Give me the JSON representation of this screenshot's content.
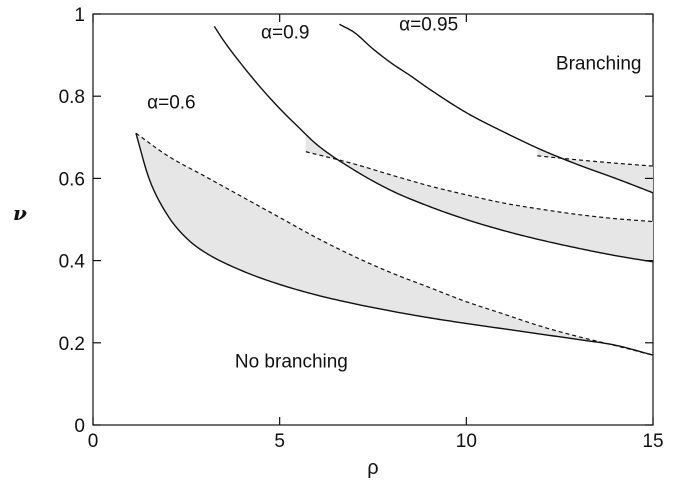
{
  "chart_data": {
    "type": "line",
    "title": "",
    "xlabel": "ρ",
    "ylabel": "ν",
    "xlim": [
      0,
      15
    ],
    "ylim": [
      0,
      1
    ],
    "xticks": [
      0,
      5,
      10,
      15
    ],
    "xtick_labels": [
      "0",
      "5",
      "10",
      "15"
    ],
    "yticks": [
      0,
      0.2,
      0.4,
      0.6,
      0.8,
      1
    ],
    "ytick_labels": [
      "0",
      "0.2",
      "0.4",
      "0.6",
      "0.8",
      "1"
    ],
    "grid": false,
    "legend": "none",
    "annotations": [
      {
        "text": "α=0.6",
        "x": 1.45,
        "y": 0.77
      },
      {
        "text": "α=0.9",
        "x": 4.5,
        "y": 0.94
      },
      {
        "text": "α=0.95",
        "x": 8.2,
        "y": 0.96
      },
      {
        "text": "Branching",
        "x": 12.4,
        "y": 0.865
      },
      {
        "text": "No branching",
        "x": 3.8,
        "y": 0.14
      }
    ],
    "series": [
      {
        "alpha": "0.6",
        "solid": [
          [
            1.15,
            0.71
          ],
          [
            1.5,
            0.6
          ],
          [
            2,
            0.51
          ],
          [
            2.5,
            0.455
          ],
          [
            3,
            0.42
          ],
          [
            4,
            0.375
          ],
          [
            5,
            0.342
          ],
          [
            6,
            0.316
          ],
          [
            7,
            0.295
          ],
          [
            8,
            0.277
          ],
          [
            9,
            0.261
          ],
          [
            10,
            0.247
          ],
          [
            11,
            0.234
          ],
          [
            12,
            0.221
          ],
          [
            13,
            0.208
          ],
          [
            14,
            0.194
          ],
          [
            15,
            0.17
          ]
        ],
        "dashed": [
          [
            1.15,
            0.71
          ],
          [
            2,
            0.655
          ],
          [
            3,
            0.605
          ],
          [
            4,
            0.555
          ],
          [
            5,
            0.505
          ],
          [
            6,
            0.455
          ],
          [
            7,
            0.41
          ],
          [
            8,
            0.37
          ],
          [
            9,
            0.335
          ],
          [
            10,
            0.3
          ],
          [
            11,
            0.27
          ],
          [
            12,
            0.24
          ],
          [
            13,
            0.215
          ],
          [
            14,
            0.193
          ],
          [
            15,
            0.17
          ]
        ]
      },
      {
        "alpha": "0.9",
        "solid": [
          [
            3.25,
            0.97
          ],
          [
            3.5,
            0.935
          ],
          [
            4,
            0.875
          ],
          [
            4.5,
            0.82
          ],
          [
            5,
            0.77
          ],
          [
            5.5,
            0.725
          ],
          [
            6,
            0.682
          ],
          [
            7,
            0.62
          ],
          [
            8,
            0.57
          ],
          [
            9,
            0.532
          ],
          [
            10,
            0.5
          ],
          [
            11,
            0.473
          ],
          [
            12,
            0.45
          ],
          [
            13,
            0.43
          ],
          [
            14,
            0.412
          ],
          [
            15,
            0.397
          ]
        ],
        "dashed": [
          [
            5.7,
            0.665
          ],
          [
            7,
            0.635
          ],
          [
            8,
            0.608
          ],
          [
            9,
            0.582
          ],
          [
            10,
            0.56
          ],
          [
            11,
            0.54
          ],
          [
            12,
            0.525
          ],
          [
            13,
            0.512
          ],
          [
            14,
            0.502
          ],
          [
            15,
            0.495
          ]
        ]
      },
      {
        "alpha": "0.95",
        "solid": [
          [
            6.6,
            0.975
          ],
          [
            7,
            0.955
          ],
          [
            7.5,
            0.915
          ],
          [
            8,
            0.88
          ],
          [
            8.5,
            0.85
          ],
          [
            9,
            0.818
          ],
          [
            10,
            0.76
          ],
          [
            11,
            0.713
          ],
          [
            12,
            0.67
          ],
          [
            13,
            0.633
          ],
          [
            14,
            0.6
          ],
          [
            15,
            0.565
          ]
        ],
        "dashed": [
          [
            11.9,
            0.655
          ],
          [
            13,
            0.645
          ],
          [
            14,
            0.637
          ],
          [
            15,
            0.63
          ]
        ]
      }
    ]
  },
  "colors": {
    "line": "#111111",
    "fill": "#e6e6e6",
    "axis": "#111111"
  }
}
